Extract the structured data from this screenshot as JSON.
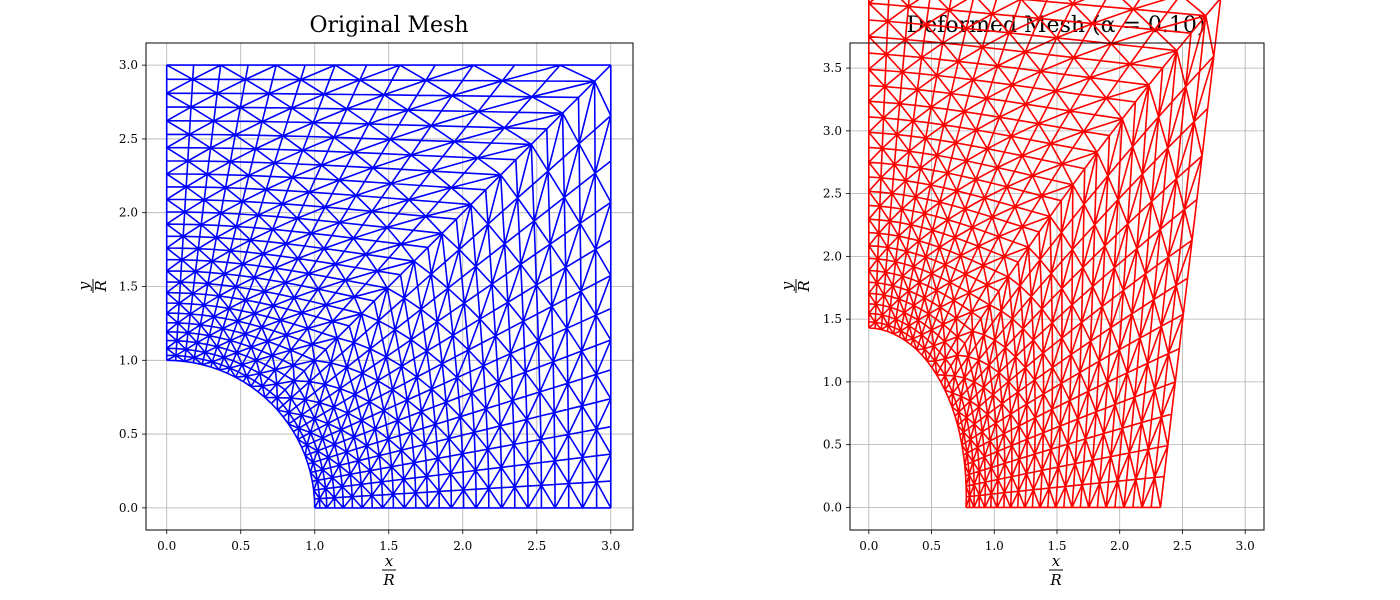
{
  "figure": {
    "colors": {
      "background": "#ffffff",
      "axes": "#000000",
      "grid": "#b0b0b0"
    }
  },
  "chart_data": [
    {
      "type": "line",
      "title": "Original Mesh",
      "xlabel": {
        "numerator": "x",
        "denominator": "R"
      },
      "ylabel": {
        "numerator": "y",
        "denominator": "R"
      },
      "xlim": [
        -0.14,
        3.15
      ],
      "ylim": [
        -0.15,
        3.15
      ],
      "xticks": [
        "0.0",
        "0.5",
        "1.0",
        "1.5",
        "2.0",
        "2.5",
        "3.0"
      ],
      "yticks": [
        "0.0",
        "0.5",
        "1.0",
        "1.5",
        "2.0",
        "2.5",
        "3.0"
      ],
      "xtick_values": [
        0,
        0.5,
        1.0,
        1.5,
        2.0,
        2.5,
        3.0
      ],
      "ytick_values": [
        0,
        0.5,
        1.0,
        1.5,
        2.0,
        2.5,
        3.0
      ],
      "grid": true,
      "color": "#0000ff",
      "mesh": {
        "hole_radius": 1.0,
        "width": 3.0,
        "height": 3.0,
        "alpha": 0.0
      }
    },
    {
      "type": "line",
      "title": "Deformed Mesh (α = 0.10)",
      "xlabel": {
        "numerator": "x",
        "denominator": "R"
      },
      "ylabel": {
        "numerator": "y",
        "denominator": "R"
      },
      "xlim": [
        -0.15,
        3.15
      ],
      "ylim": [
        -0.18,
        3.7
      ],
      "xticks": [
        "0.0",
        "0.5",
        "1.0",
        "1.5",
        "2.0",
        "2.5",
        "3.0"
      ],
      "yticks": [
        "0.0",
        "0.5",
        "1.0",
        "1.5",
        "2.0",
        "2.5",
        "3.0",
        "3.5"
      ],
      "xtick_values": [
        0,
        0.5,
        1.0,
        1.5,
        2.0,
        2.5,
        3.0
      ],
      "ytick_values": [
        0,
        0.5,
        1.0,
        1.5,
        2.0,
        2.5,
        3.0,
        3.5
      ],
      "grid": true,
      "color": "#ff0000",
      "mesh": {
        "hole_radius": 1.0,
        "width": 3.0,
        "height": 3.0,
        "alpha": 0.1
      }
    }
  ]
}
